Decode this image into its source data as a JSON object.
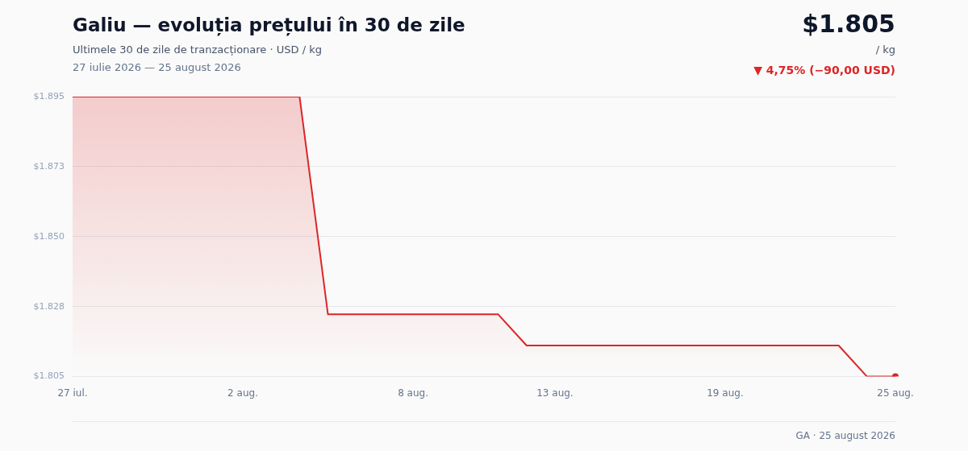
{
  "chart_data": {
    "type": "area",
    "title": "Galiu — evoluția prețului în 30 de zile",
    "subtitle": "Ultimele 30 de zile de tranzacționare · USD / kg",
    "categories": [
      "27 iul.",
      null,
      null,
      null,
      null,
      null,
      "2 aug.",
      null,
      null,
      null,
      null,
      null,
      "8 aug.",
      null,
      null,
      null,
      null,
      "13 aug.",
      null,
      null,
      null,
      null,
      null,
      "19 aug.",
      null,
      null,
      null,
      null,
      null,
      "25 aug."
    ],
    "series": [
      {
        "color": "#dc2626",
        "values": [
          1895,
          1895,
          1895,
          1895,
          1895,
          1895,
          1895,
          1895,
          1895,
          1825,
          1825,
          1825,
          1825,
          1825,
          1825,
          1825,
          1815,
          1815,
          1815,
          1815,
          1815,
          1815,
          1815,
          1815,
          1815,
          1815,
          1815,
          1815,
          1805,
          1805
        ]
      }
    ],
    "ylim": [
      1805,
      1895
    ],
    "yticks": [
      {
        "value": 1805,
        "label": "$1.805"
      },
      {
        "value": 1827.5,
        "label": "$1.828"
      },
      {
        "value": 1850,
        "label": "$1.850"
      },
      {
        "value": 1872.5,
        "label": "$1.873"
      },
      {
        "value": 1895,
        "label": "$1.895"
      }
    ],
    "grid": "y",
    "legend": false,
    "line_style": "solid",
    "annotations": [
      "$1.805",
      "/ kg",
      "▼ 4,75% (−90,00 USD)",
      "27 iulie 2026 — 25 august 2026",
      "GA · 25 august 2026"
    ]
  }
}
